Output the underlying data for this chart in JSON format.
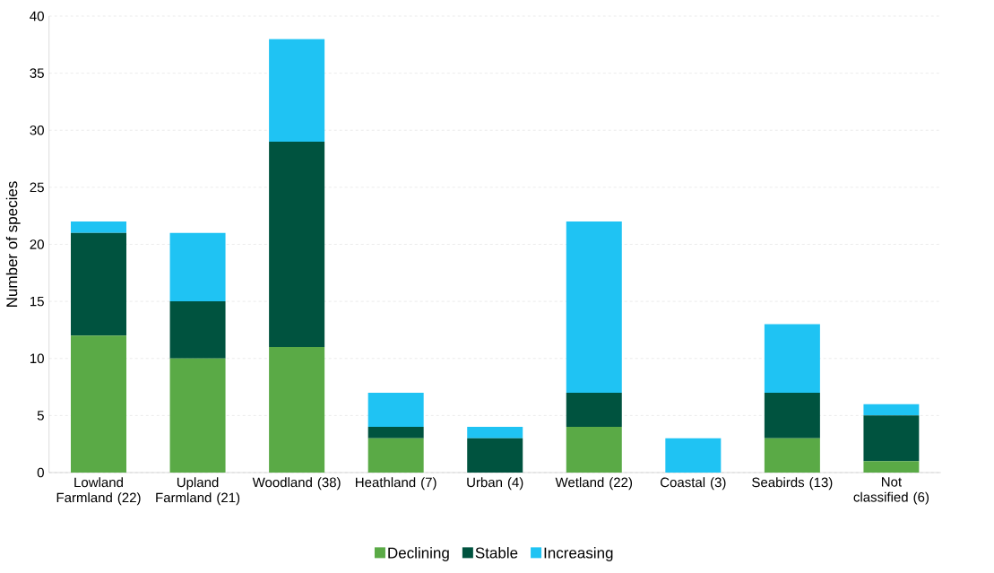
{
  "chart_data": {
    "type": "bar",
    "stacked": true,
    "ylabel": "Number of species",
    "categories": [
      "Lowland Farmland (22)",
      "Upland Farmland (21)",
      "Woodland (38)",
      "Heathland (7)",
      "Urban (4)",
      "Wetland (22)",
      "Coastal (3)",
      "Seabirds (13)",
      "Not classified (6)"
    ],
    "series": [
      {
        "name": "Declining",
        "color": "#5aaa46",
        "values": [
          12,
          10,
          11,
          3,
          0,
          4,
          0,
          3,
          1
        ]
      },
      {
        "name": "Stable",
        "color": "#00533f",
        "values": [
          9,
          5,
          18,
          1,
          3,
          3,
          0,
          4,
          4
        ]
      },
      {
        "name": "Increasing",
        "color": "#1fc3f3",
        "values": [
          1,
          6,
          9,
          3,
          1,
          15,
          3,
          6,
          1
        ]
      }
    ],
    "ylim": [
      0,
      40
    ],
    "yticks": [
      0,
      5,
      10,
      15,
      20,
      25,
      30,
      35,
      40
    ],
    "grid": "y",
    "legend": "bottom"
  }
}
